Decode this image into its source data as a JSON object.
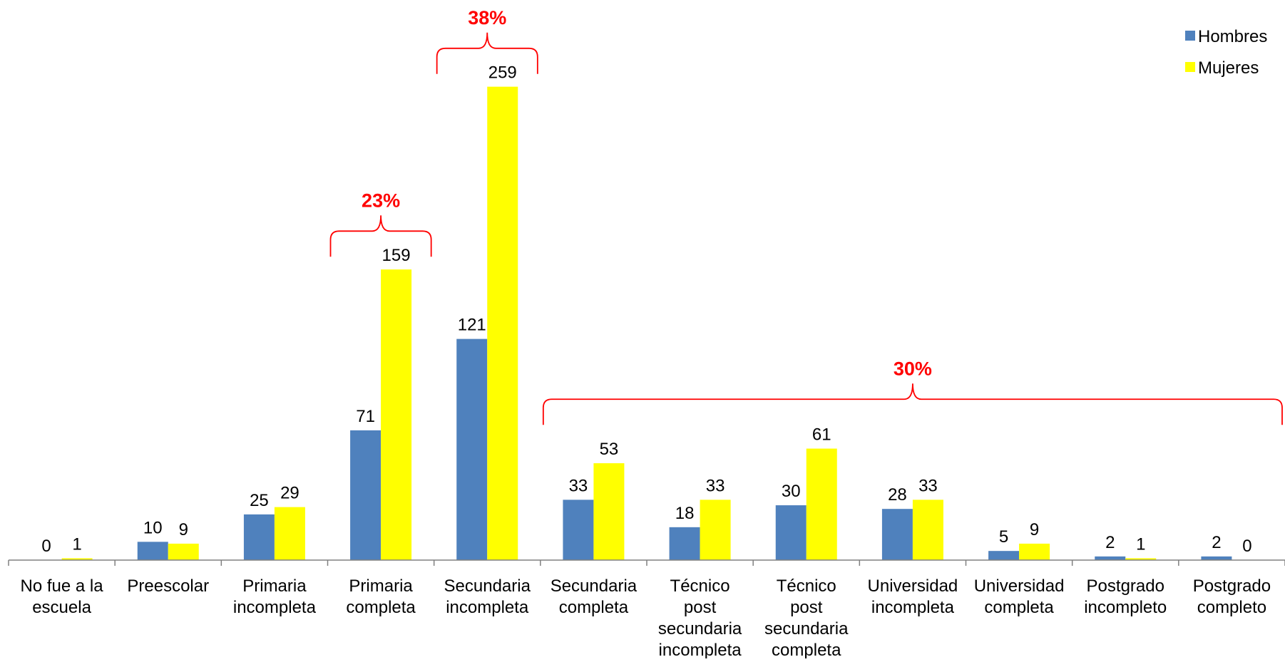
{
  "chart_data": {
    "type": "bar",
    "title": "",
    "xlabel": "",
    "ylabel": "",
    "ylim": [
      0,
      270
    ],
    "grid": false,
    "legend_position": "top-right",
    "categories": [
      [
        "No fue a la",
        "escuela"
      ],
      [
        "Preescolar"
      ],
      [
        "Primaria",
        "incompleta"
      ],
      [
        "Primaria",
        "completa"
      ],
      [
        "Secundaria",
        "incompleta"
      ],
      [
        "Secundaria",
        "completa"
      ],
      [
        "Técnico",
        "post",
        "secundaria",
        "incompleta"
      ],
      [
        "Técnico",
        "post",
        "secundaria",
        "completa"
      ],
      [
        "Universidad",
        "incompleta"
      ],
      [
        "Universidad",
        "completa"
      ],
      [
        "Postgrado",
        "incompleto"
      ],
      [
        "Postgrado",
        "completo"
      ]
    ],
    "series": [
      {
        "name": "Hombres",
        "color": "#4F81BD",
        "values": [
          0,
          10,
          25,
          71,
          121,
          33,
          18,
          30,
          28,
          5,
          2,
          2
        ]
      },
      {
        "name": "Mujeres",
        "color": "#FFFF00",
        "values": [
          1,
          9,
          29,
          159,
          259,
          53,
          33,
          61,
          33,
          9,
          1,
          0
        ]
      }
    ],
    "annotations": [
      {
        "label": "23%",
        "from_category": 3,
        "to_category": 3,
        "level": 180,
        "color": "#FF0000"
      },
      {
        "label": "38%",
        "from_category": 4,
        "to_category": 4,
        "level": 280,
        "color": "#FF0000"
      },
      {
        "label": "30%",
        "from_category": 5,
        "to_category": 11,
        "level": 88,
        "color": "#FF0000"
      }
    ]
  }
}
